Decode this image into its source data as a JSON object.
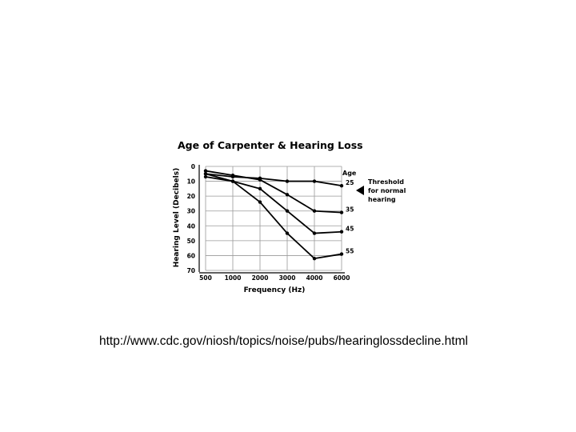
{
  "source_url": "http://www.cdc.gov/niosh/topics/noise/pubs/hearinglossdecline.html",
  "chart_data": {
    "type": "line",
    "title": "Age of Carpenter & Hearing Loss",
    "xlabel": "Frequency (Hz)",
    "ylabel": "Hearing Level (Decibels)",
    "categories": [
      "500",
      "1000",
      "2000",
      "3000",
      "4000",
      "6000"
    ],
    "y_ticks": [
      "0",
      "10",
      "20",
      "30",
      "40",
      "50",
      "60",
      "70"
    ],
    "ylim": [
      0,
      70
    ],
    "y_inverted": true,
    "grid": true,
    "legend_title": "Age",
    "threshold_label": "Threshold for normal hearing",
    "threshold_value": 20,
    "series": [
      {
        "name": "25",
        "values": [
          5,
          7,
          8,
          10,
          10,
          13
        ]
      },
      {
        "name": "35",
        "values": [
          3,
          6,
          9,
          19,
          30,
          31
        ]
      },
      {
        "name": "45",
        "values": [
          5,
          10,
          15,
          30,
          45,
          44
        ]
      },
      {
        "name": "55",
        "values": [
          7,
          10,
          24,
          45,
          62,
          59
        ]
      }
    ],
    "colors": {
      "line": "#000000",
      "grid": "#9a9a9a",
      "frame": "#000000"
    }
  }
}
